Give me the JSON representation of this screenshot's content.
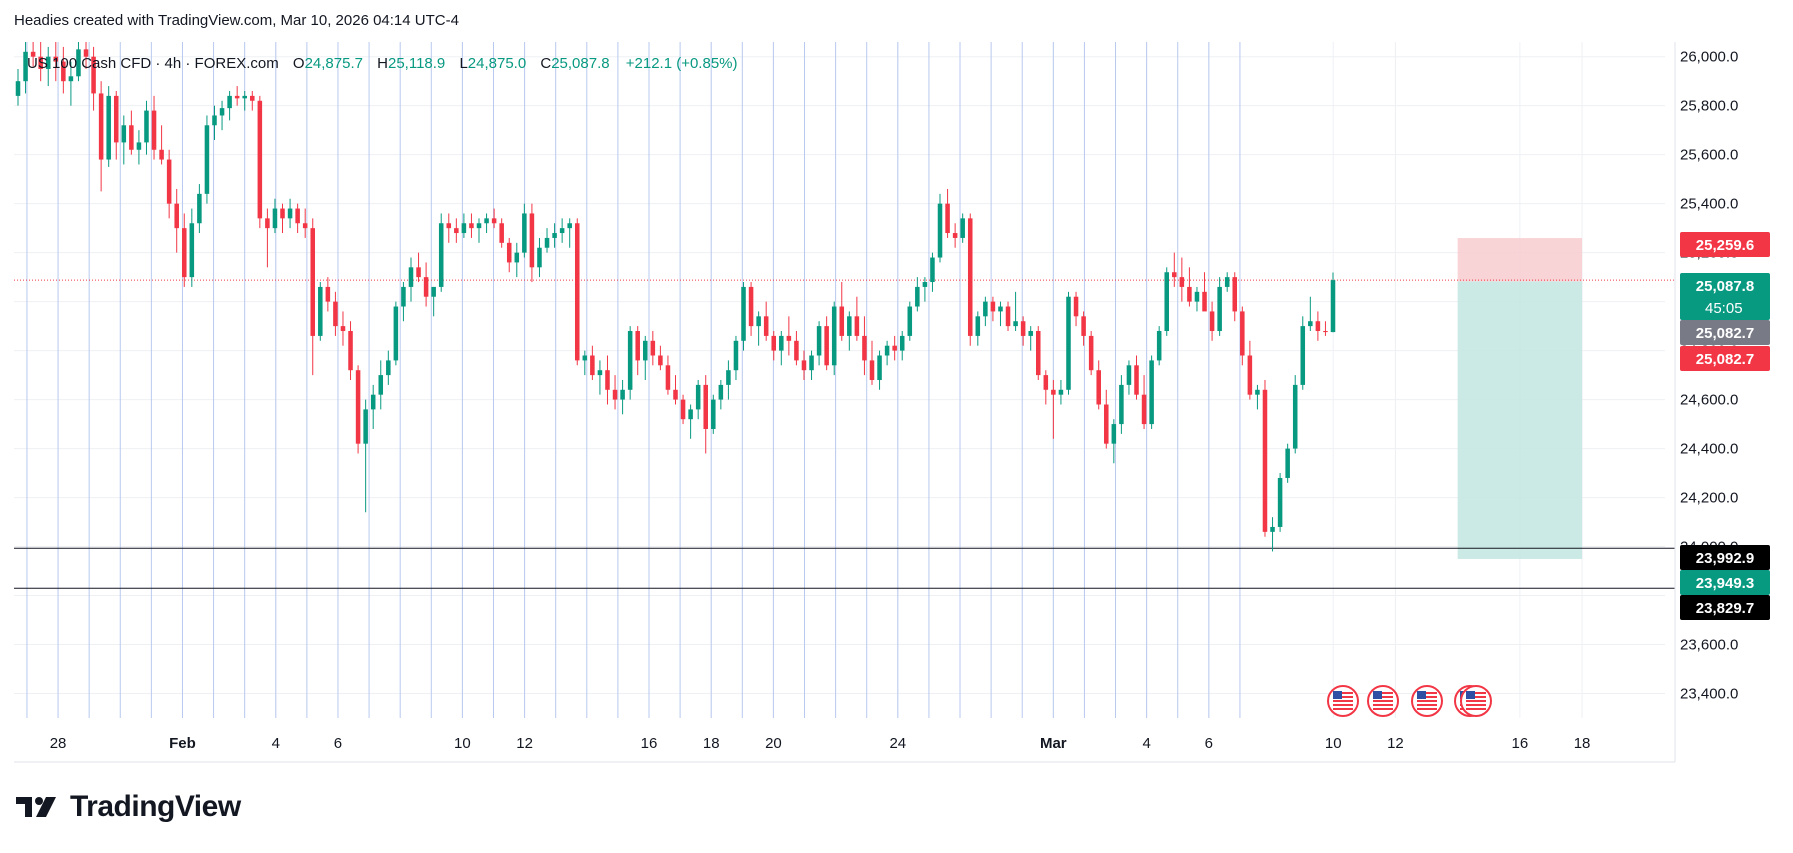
{
  "header": {
    "text": "Headies created with TradingView.com, Mar 10, 2026 04:14 UTC-4"
  },
  "legend": {
    "symbol": "US 100 Cash CFD · 4h · FOREX.com",
    "o_label": "O",
    "o_value": "24,875.7",
    "h_label": "H",
    "h_value": "25,118.9",
    "l_label": "L",
    "l_value": "24,875.0",
    "c_label": "C",
    "c_value": "25,087.8",
    "change": "+212.1 (+0.85%)"
  },
  "logo": {
    "text": "TradingView"
  },
  "colors": {
    "up": "#089981",
    "down": "#f23645",
    "grid": "#eef0f4",
    "session": "#b8c9ef",
    "price_line": "#f23645",
    "black_line": "#131722",
    "stop_zone": "#f8c9cd",
    "target_zone": "#bfe5de",
    "neutral_badge": "#787b86"
  },
  "chart_data": {
    "type": "candlestick",
    "interval": "4h",
    "ylim": [
      23300,
      26060
    ],
    "y_ticks": [
      {
        "value": 26000,
        "label": "26,000.0"
      },
      {
        "value": 25800,
        "label": "25,800.0"
      },
      {
        "value": 25600,
        "label": "25,600.0"
      },
      {
        "value": 25400,
        "label": "25,400.0"
      },
      {
        "value": 25200,
        "label": "25,200.0"
      },
      {
        "value": 25000,
        "label": "25,000.0"
      },
      {
        "value": 24800,
        "label": "24,800.0"
      },
      {
        "value": 24600,
        "label": "24,600.0"
      },
      {
        "value": 24400,
        "label": "24,400.0"
      },
      {
        "value": 24200,
        "label": "24,200.0"
      },
      {
        "value": 24000,
        "label": "24,000.0"
      },
      {
        "value": 23800,
        "label": "23,800.0"
      },
      {
        "value": 23600,
        "label": "23,600.0"
      },
      {
        "value": 23400,
        "label": "23,400.0"
      }
    ],
    "x_ticks": [
      {
        "date": "2026-01-28",
        "label": "28"
      },
      {
        "date": "2026-02-01",
        "label": "Feb"
      },
      {
        "date": "2026-02-04",
        "label": "4"
      },
      {
        "date": "2026-02-06",
        "label": "6"
      },
      {
        "date": "2026-02-10",
        "label": "10"
      },
      {
        "date": "2026-02-12",
        "label": "12"
      },
      {
        "date": "2026-02-16",
        "label": "16"
      },
      {
        "date": "2026-02-18",
        "label": "18"
      },
      {
        "date": "2026-02-20",
        "label": "20"
      },
      {
        "date": "2026-02-24",
        "label": "24"
      },
      {
        "date": "2026-03-01",
        "label": "Mar"
      },
      {
        "date": "2026-03-04",
        "label": "4"
      },
      {
        "date": "2026-03-06",
        "label": "6"
      },
      {
        "date": "2026-03-10",
        "label": "10"
      },
      {
        "date": "2026-03-12",
        "label": "12"
      },
      {
        "date": "2026-03-16",
        "label": "16"
      },
      {
        "date": "2026-03-18",
        "label": "18"
      }
    ],
    "candles": [
      [
        25840,
        25950,
        25800,
        25900
      ],
      [
        25900,
        26060,
        25850,
        26020
      ],
      [
        26020,
        26060,
        25960,
        26000
      ],
      [
        26000,
        26060,
        25900,
        25950
      ],
      [
        25950,
        26040,
        25880,
        26000
      ],
      [
        26000,
        26060,
        25900,
        25980
      ],
      [
        25980,
        26040,
        25850,
        25900
      ],
      [
        25900,
        25980,
        25800,
        25920
      ],
      [
        25920,
        26060,
        25900,
        26030
      ],
      [
        26030,
        26060,
        25950,
        26000
      ],
      [
        26000,
        26040,
        25780,
        25850
      ],
      [
        25850,
        25900,
        25450,
        25580
      ],
      [
        25580,
        25880,
        25550,
        25840
      ],
      [
        25840,
        25860,
        25580,
        25650
      ],
      [
        25650,
        25760,
        25560,
        25720
      ],
      [
        25720,
        25780,
        25600,
        25620
      ],
      [
        25620,
        25700,
        25560,
        25650
      ],
      [
        25650,
        25820,
        25600,
        25780
      ],
      [
        25780,
        25840,
        25580,
        25620
      ],
      [
        25620,
        25720,
        25560,
        25580
      ],
      [
        25580,
        25620,
        25340,
        25400
      ],
      [
        25400,
        25460,
        25200,
        25300
      ],
      [
        25300,
        25360,
        25060,
        25100
      ],
      [
        25100,
        25380,
        25060,
        25320
      ],
      [
        25320,
        25480,
        25280,
        25440
      ],
      [
        25440,
        25760,
        25400,
        25720
      ],
      [
        25720,
        25800,
        25660,
        25760
      ],
      [
        25760,
        25820,
        25700,
        25790
      ],
      [
        25790,
        25860,
        25740,
        25840
      ],
      [
        25840,
        25880,
        25800,
        25830
      ],
      [
        25830,
        25860,
        25780,
        25840
      ],
      [
        25840,
        25860,
        25780,
        25820
      ],
      [
        25820,
        25840,
        25300,
        25340
      ],
      [
        25340,
        25380,
        25140,
        25300
      ],
      [
        25300,
        25420,
        25280,
        25380
      ],
      [
        25380,
        25400,
        25280,
        25340
      ],
      [
        25340,
        25420,
        25300,
        25380
      ],
      [
        25380,
        25400,
        25280,
        25320
      ],
      [
        25320,
        25380,
        25260,
        25300
      ],
      [
        25300,
        25340,
        24700,
        24860
      ],
      [
        24860,
        25080,
        24840,
        25060
      ],
      [
        25060,
        25100,
        24960,
        25000
      ],
      [
        25000,
        25040,
        24860,
        24900
      ],
      [
        24900,
        24960,
        24820,
        24880
      ],
      [
        24880,
        24920,
        24680,
        24720
      ],
      [
        24720,
        24740,
        24380,
        24420
      ],
      [
        24420,
        24600,
        24140,
        24560
      ],
      [
        24560,
        24660,
        24480,
        24620
      ],
      [
        24620,
        24760,
        24560,
        24700
      ],
      [
        24700,
        24800,
        24660,
        24760
      ],
      [
        24760,
        25000,
        24740,
        24980
      ],
      [
        24980,
        25080,
        24920,
        25060
      ],
      [
        25060,
        25180,
        25000,
        25140
      ],
      [
        25140,
        25200,
        25080,
        25100
      ],
      [
        25100,
        25160,
        24980,
        25020
      ],
      [
        25020,
        25060,
        24940,
        25060
      ],
      [
        25060,
        25360,
        25040,
        25320
      ],
      [
        25320,
        25360,
        25240,
        25300
      ],
      [
        25300,
        25340,
        25240,
        25280
      ],
      [
        25280,
        25360,
        25260,
        25320
      ],
      [
        25320,
        25360,
        25260,
        25300
      ],
      [
        25300,
        25340,
        25240,
        25320
      ],
      [
        25320,
        25360,
        25280,
        25340
      ],
      [
        25340,
        25380,
        25300,
        25320
      ],
      [
        25320,
        25340,
        25220,
        25240
      ],
      [
        25240,
        25260,
        25120,
        25160
      ],
      [
        25160,
        25240,
        25100,
        25200
      ],
      [
        25200,
        25400,
        25180,
        25360
      ],
      [
        25360,
        25400,
        25080,
        25140
      ],
      [
        25140,
        25260,
        25100,
        25220
      ],
      [
        25220,
        25300,
        25200,
        25260
      ],
      [
        25260,
        25320,
        25220,
        25280
      ],
      [
        25280,
        25340,
        25240,
        25300
      ],
      [
        25300,
        25340,
        25220,
        25320
      ],
      [
        25320,
        25340,
        24740,
        24760
      ],
      [
        24760,
        24800,
        24700,
        24780
      ],
      [
        24780,
        24820,
        24680,
        24700
      ],
      [
        24700,
        24760,
        24620,
        24720
      ],
      [
        24720,
        24780,
        24580,
        24640
      ],
      [
        24640,
        24700,
        24560,
        24600
      ],
      [
        24600,
        24680,
        24540,
        24640
      ],
      [
        24640,
        24900,
        24600,
        24880
      ],
      [
        24880,
        24900,
        24700,
        24760
      ],
      [
        24760,
        24860,
        24680,
        24840
      ],
      [
        24840,
        24880,
        24740,
        24780
      ],
      [
        24780,
        24820,
        24720,
        24740
      ],
      [
        24740,
        24780,
        24620,
        24640
      ],
      [
        24640,
        24700,
        24580,
        24600
      ],
      [
        24600,
        24620,
        24500,
        24520
      ],
      [
        24520,
        24580,
        24440,
        24560
      ],
      [
        24560,
        24680,
        24520,
        24660
      ],
      [
        24660,
        24700,
        24380,
        24480
      ],
      [
        24480,
        24620,
        24460,
        24600
      ],
      [
        24600,
        24680,
        24560,
        24660
      ],
      [
        24660,
        24760,
        24600,
        24720
      ],
      [
        24720,
        24860,
        24680,
        24840
      ],
      [
        24840,
        25080,
        24800,
        25060
      ],
      [
        25060,
        25080,
        24860,
        24900
      ],
      [
        24900,
        24960,
        24820,
        24940
      ],
      [
        24940,
        25000,
        24840,
        24860
      ],
      [
        24860,
        24880,
        24760,
        24800
      ],
      [
        24800,
        24880,
        24740,
        24860
      ],
      [
        24860,
        24940,
        24780,
        24840
      ],
      [
        24840,
        24880,
        24740,
        24760
      ],
      [
        24760,
        24800,
        24680,
        24720
      ],
      [
        24720,
        24800,
        24680,
        24780
      ],
      [
        24780,
        24920,
        24740,
        24900
      ],
      [
        24900,
        24940,
        24720,
        24740
      ],
      [
        24740,
        25000,
        24700,
        24980
      ],
      [
        24980,
        25080,
        24840,
        24860
      ],
      [
        24860,
        24960,
        24800,
        24940
      ],
      [
        24940,
        25020,
        24840,
        24860
      ],
      [
        24860,
        24940,
        24700,
        24760
      ],
      [
        24760,
        24840,
        24660,
        24680
      ],
      [
        24680,
        24800,
        24640,
        24780
      ],
      [
        24780,
        24840,
        24740,
        24820
      ],
      [
        24820,
        24860,
        24760,
        24800
      ],
      [
        24800,
        24880,
        24760,
        24860
      ],
      [
        24860,
        25000,
        24840,
        24980
      ],
      [
        24980,
        25100,
        24960,
        25060
      ],
      [
        25060,
        25100,
        25000,
        25080
      ],
      [
        25080,
        25200,
        25040,
        25180
      ],
      [
        25180,
        25440,
        25160,
        25400
      ],
      [
        25400,
        25460,
        25260,
        25280
      ],
      [
        25280,
        25320,
        25220,
        25260
      ],
      [
        25260,
        25360,
        25240,
        25340
      ],
      [
        25340,
        25360,
        24820,
        24860
      ],
      [
        24860,
        24960,
        24820,
        24940
      ],
      [
        24940,
        25020,
        24900,
        25000
      ],
      [
        25000,
        25020,
        24920,
        24960
      ],
      [
        24960,
        25000,
        24900,
        24980
      ],
      [
        24980,
        25000,
        24880,
        24900
      ],
      [
        24900,
        25040,
        24880,
        24920
      ],
      [
        24920,
        24940,
        24820,
        24860
      ],
      [
        24860,
        24900,
        24800,
        24880
      ],
      [
        24880,
        24900,
        24680,
        24700
      ],
      [
        24700,
        24720,
        24580,
        24640
      ],
      [
        24640,
        24680,
        24440,
        24620
      ],
      [
        24620,
        24680,
        24580,
        24640
      ],
      [
        24640,
        25040,
        24620,
        25020
      ],
      [
        25020,
        25040,
        24900,
        24940
      ],
      [
        24940,
        24960,
        24820,
        24860
      ],
      [
        24860,
        24880,
        24700,
        24720
      ],
      [
        24720,
        24760,
        24560,
        24580
      ],
      [
        24580,
        24640,
        24400,
        24420
      ],
      [
        24420,
        24520,
        24340,
        24500
      ],
      [
        24500,
        24700,
        24460,
        24660
      ],
      [
        24660,
        24760,
        24620,
        24740
      ],
      [
        24740,
        24780,
        24600,
        24620
      ],
      [
        24620,
        24700,
        24480,
        24500
      ],
      [
        24500,
        24780,
        24480,
        24760
      ],
      [
        24760,
        24900,
        24740,
        24880
      ],
      [
        24880,
        25140,
        24860,
        25120
      ],
      [
        25120,
        25200,
        25060,
        25100
      ],
      [
        25100,
        25180,
        25000,
        25060
      ],
      [
        25060,
        25140,
        24980,
        25000
      ],
      [
        25000,
        25060,
        24960,
        25040
      ],
      [
        25040,
        25120,
        24980,
        24960
      ],
      [
        24960,
        25000,
        24840,
        24880
      ],
      [
        24880,
        25100,
        24860,
        25060
      ],
      [
        25060,
        25120,
        25040,
        25100
      ],
      [
        25100,
        25120,
        24920,
        24960
      ],
      [
        24960,
        24980,
        24740,
        24780
      ],
      [
        24780,
        24840,
        24600,
        24620
      ],
      [
        24620,
        24660,
        24560,
        24640
      ],
      [
        24640,
        24680,
        24040,
        24060
      ],
      [
        24060,
        24120,
        23980,
        24080
      ],
      [
        24080,
        24300,
        24060,
        24280
      ],
      [
        24280,
        24420,
        24260,
        24400
      ],
      [
        24400,
        24700,
        24380,
        24660
      ],
      [
        24660,
        24940,
        24640,
        24900
      ],
      [
        24900,
        25020,
        24880,
        24920
      ],
      [
        24920,
        24960,
        24840,
        24880
      ],
      [
        24880,
        24920,
        24860,
        24875.7
      ],
      [
        24875.7,
        25118.9,
        24875,
        25087.8
      ]
    ],
    "price_labels": [
      {
        "value": 25259.6,
        "label": "25,259.6",
        "kind": "stop"
      },
      {
        "value": 25087.8,
        "label": "25,087.8",
        "countdown": "45:05",
        "kind": "last"
      },
      {
        "value": 25082.7,
        "label": "25,082.7",
        "kind": "neutral"
      },
      {
        "value": 25082.7,
        "label": "25,082.7",
        "kind": "entry"
      },
      {
        "value": 23992.9,
        "label": "23,992.9",
        "kind": "line"
      },
      {
        "value": 23949.3,
        "label": "23,949.3",
        "kind": "target"
      },
      {
        "value": 23829.7,
        "label": "23,829.7",
        "kind": "line"
      }
    ],
    "horizontal_lines": [
      23992.9,
      23829.7
    ],
    "position_tool": {
      "stop": 25259.6,
      "entry": 25082.7,
      "target": 23949.3,
      "start_date": "2026-03-14",
      "end_date": "2026-03-18"
    },
    "event_icons": [
      "us-flag-icon",
      "us-flag-icon",
      "us-flag-icon",
      "us-flag-icon",
      "us-flag-icon"
    ],
    "grid": true
  }
}
